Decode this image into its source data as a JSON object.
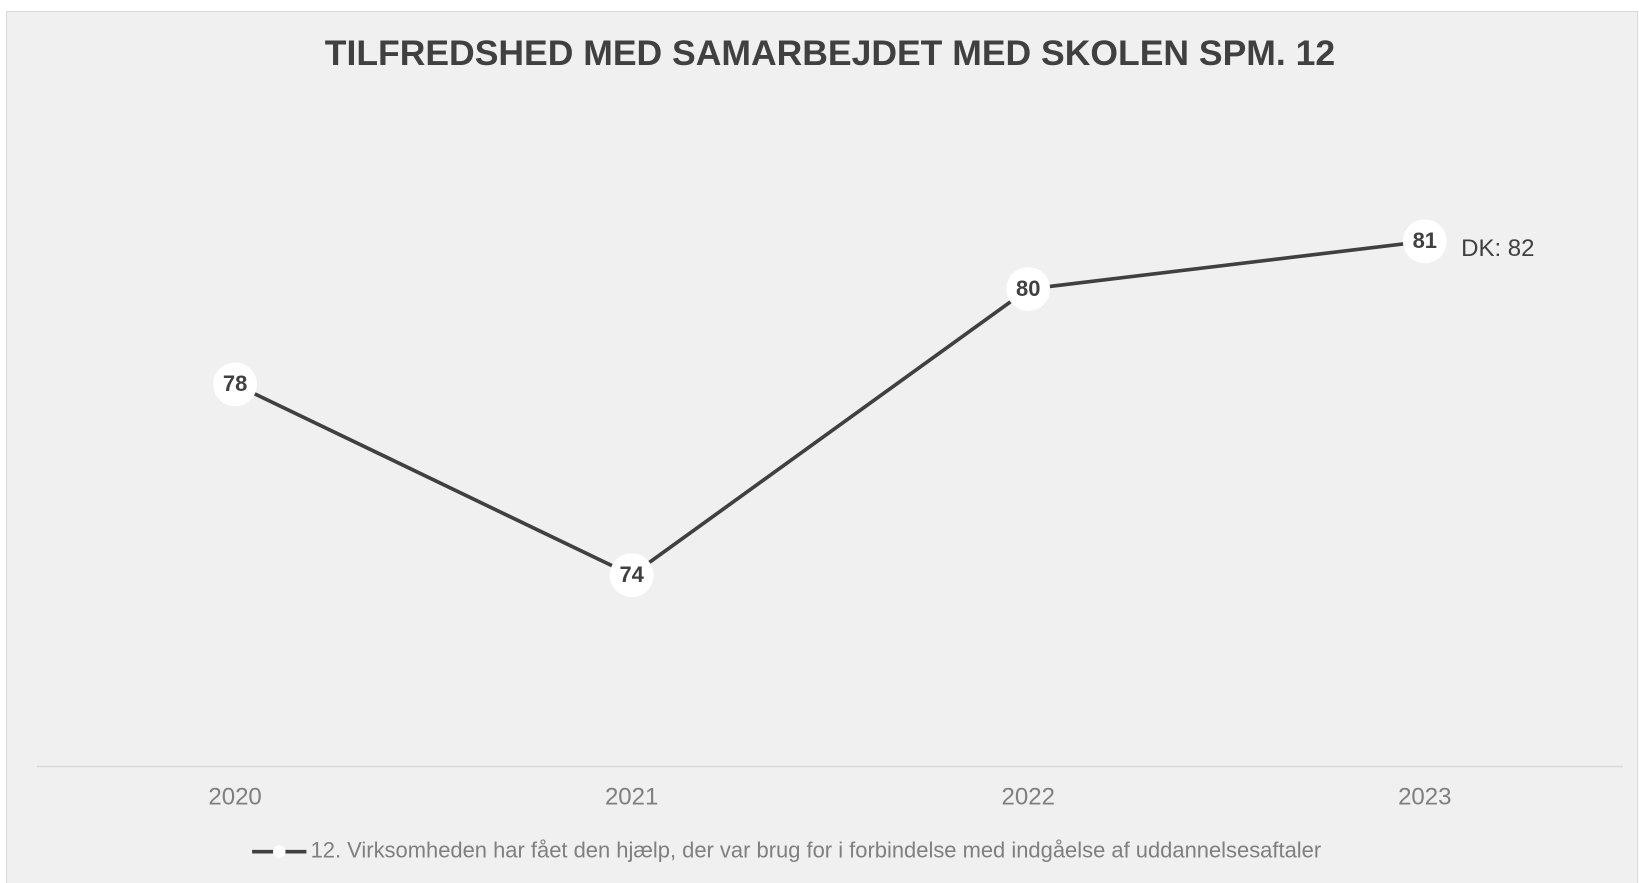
{
  "chart_data": {
    "type": "line",
    "title": "TILFREDSHED MED SAMARBEJDET MED SKOLEN SPM. 12",
    "categories": [
      "2020",
      "2021",
      "2022",
      "2023"
    ],
    "series": [
      {
        "name": "12. Virksomheden har fået den hjælp, der var brug for i forbindelse med indgåelse af uddannelsesaftaler",
        "color": "#404040",
        "values": [
          78,
          74,
          80,
          81
        ]
      }
    ],
    "ylim": [
      70,
      84
    ],
    "annotation": "DK: 82",
    "legend": "bottom"
  }
}
